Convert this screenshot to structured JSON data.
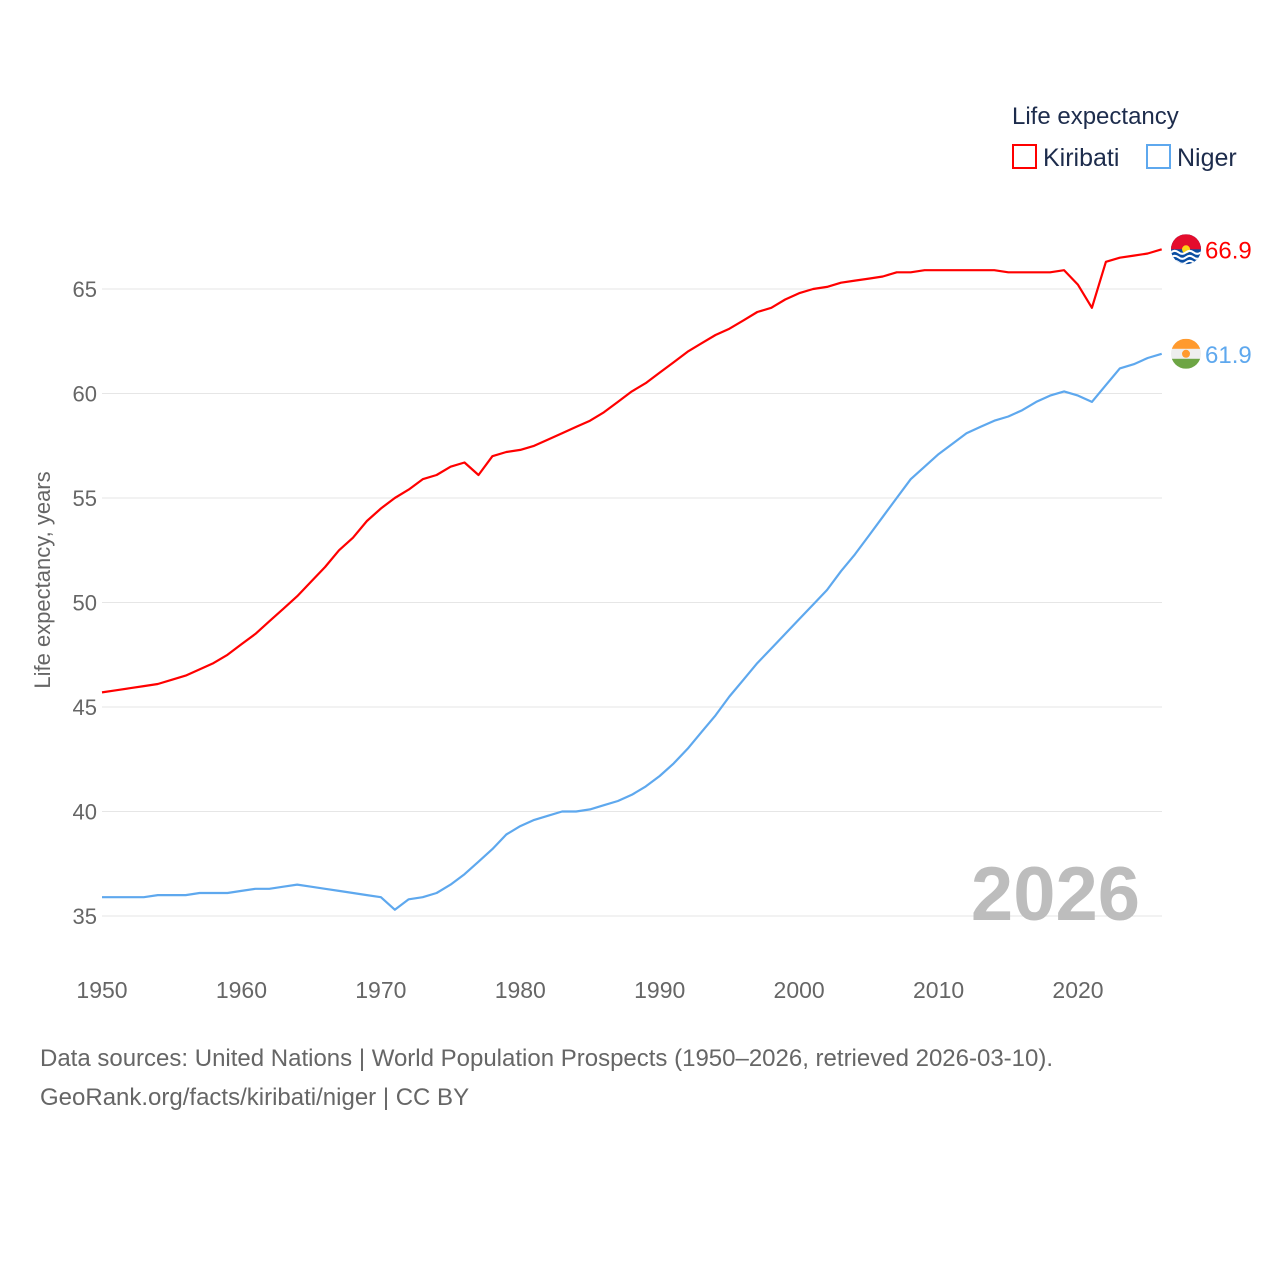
{
  "chart_data": {
    "type": "line",
    "legend_title": "Life expectancy",
    "legend_placement": "top-right",
    "ylabel": "Life expectancy, years",
    "xlabel": "",
    "xlim": [
      1950,
      2026
    ],
    "ylim": [
      33,
      68
    ],
    "x_ticks": [
      1950,
      1960,
      1970,
      1980,
      1990,
      2000,
      2010,
      2020
    ],
    "y_ticks": [
      35,
      40,
      45,
      50,
      55,
      60,
      65
    ],
    "grid": true,
    "year_watermark": "2026",
    "x": [
      1950,
      1951,
      1952,
      1953,
      1954,
      1955,
      1956,
      1957,
      1958,
      1959,
      1960,
      1961,
      1962,
      1963,
      1964,
      1965,
      1966,
      1967,
      1968,
      1969,
      1970,
      1971,
      1972,
      1973,
      1974,
      1975,
      1976,
      1977,
      1978,
      1979,
      1980,
      1981,
      1982,
      1983,
      1984,
      1985,
      1986,
      1987,
      1988,
      1989,
      1990,
      1991,
      1992,
      1993,
      1994,
      1995,
      1996,
      1997,
      1998,
      1999,
      2000,
      2001,
      2002,
      2003,
      2004,
      2005,
      2006,
      2007,
      2008,
      2009,
      2010,
      2011,
      2012,
      2013,
      2014,
      2015,
      2016,
      2017,
      2018,
      2019,
      2020,
      2021,
      2022,
      2023,
      2024,
      2025,
      2026
    ],
    "series": [
      {
        "name": "Kiribati",
        "color": "#ff0000",
        "end_label": "66.9",
        "flag": "kiribati-flag",
        "values": [
          45.7,
          45.8,
          45.9,
          46.0,
          46.1,
          46.3,
          46.5,
          46.8,
          47.1,
          47.5,
          48.0,
          48.5,
          49.1,
          49.7,
          50.3,
          51.0,
          51.7,
          52.5,
          53.1,
          53.9,
          54.5,
          55.0,
          55.4,
          55.9,
          56.1,
          56.5,
          56.7,
          56.1,
          57.0,
          57.2,
          57.3,
          57.5,
          57.8,
          58.1,
          58.4,
          58.7,
          59.1,
          59.6,
          60.1,
          60.5,
          61.0,
          61.5,
          62.0,
          62.4,
          62.8,
          63.1,
          63.5,
          63.9,
          64.1,
          64.5,
          64.8,
          65.0,
          65.1,
          65.3,
          65.4,
          65.5,
          65.6,
          65.8,
          65.8,
          65.9,
          65.9,
          65.9,
          65.9,
          65.9,
          65.9,
          65.8,
          65.8,
          65.8,
          65.8,
          65.9,
          65.2,
          64.1,
          66.3,
          66.5,
          66.6,
          66.7,
          66.9
        ]
      },
      {
        "name": "Niger",
        "color": "#5ea8ee",
        "end_label": "61.9",
        "flag": "niger-flag",
        "values": [
          35.9,
          35.9,
          35.9,
          35.9,
          36.0,
          36.0,
          36.0,
          36.1,
          36.1,
          36.1,
          36.2,
          36.3,
          36.3,
          36.4,
          36.5,
          36.4,
          36.3,
          36.2,
          36.1,
          36.0,
          35.9,
          35.3,
          35.8,
          35.9,
          36.1,
          36.5,
          37.0,
          37.6,
          38.2,
          38.9,
          39.3,
          39.6,
          39.8,
          40.0,
          40.0,
          40.1,
          40.3,
          40.5,
          40.8,
          41.2,
          41.7,
          42.3,
          43.0,
          43.8,
          44.6,
          45.5,
          46.3,
          47.1,
          47.8,
          48.5,
          49.2,
          49.9,
          50.6,
          51.5,
          52.3,
          53.2,
          54.1,
          55.0,
          55.9,
          56.5,
          57.1,
          57.6,
          58.1,
          58.4,
          58.7,
          58.9,
          59.2,
          59.6,
          59.9,
          60.1,
          59.9,
          59.6,
          60.4,
          61.2,
          61.4,
          61.7,
          61.9
        ]
      }
    ]
  },
  "footer": {
    "sources": "Data sources: United Nations | World Population Prospects (1950–2026, retrieved 2026-03-10).",
    "credit": "GeoRank.org/facts/kiribati/niger | CC BY"
  }
}
